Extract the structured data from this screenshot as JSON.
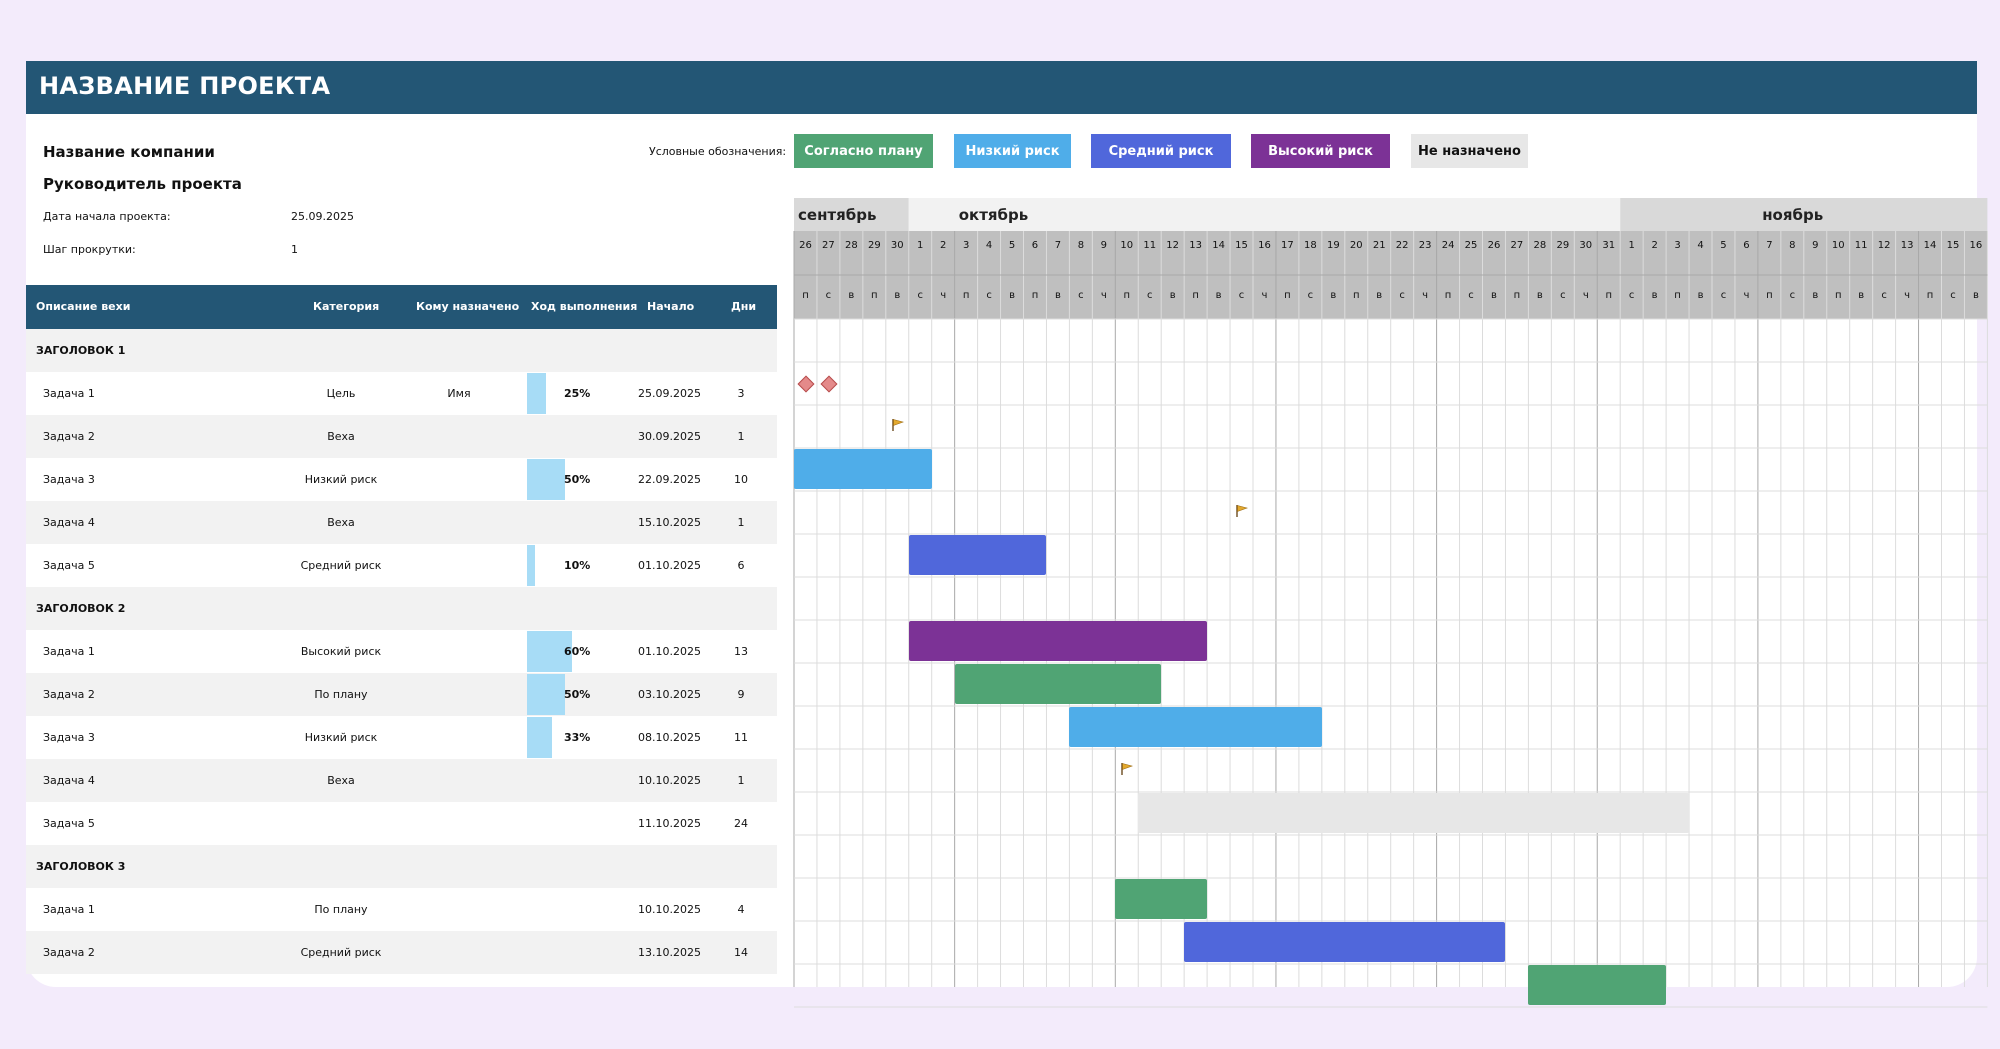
{
  "title": "НАЗВАНИЕ ПРОЕКТА",
  "company": "Название компании",
  "manager": "Руководитель проекта",
  "start_label": "Дата начала проекта:",
  "start_value": "25.09.2025",
  "step_label": "Шаг прокрутки:",
  "step_value": "1",
  "legend": {
    "label": "Условные обозначения:",
    "items": [
      {
        "label": "Согласно плану",
        "color": "#50a474",
        "text": "#ffffff"
      },
      {
        "label": "Низкий риск",
        "color": "#4fade9",
        "text": "#ffffff"
      },
      {
        "label": "Средний риск",
        "color": "#5067db",
        "text": "#ffffff"
      },
      {
        "label": "Высокий риск",
        "color": "#7c3296",
        "text": "#ffffff"
      },
      {
        "label": "Не назначено",
        "color": "#e7e7e7",
        "text": "#111111"
      }
    ]
  },
  "columns": [
    "Описание вехи",
    "Категория",
    "Кому назначено",
    "Ход выполнения",
    "Начало",
    "Дни"
  ],
  "rows": [
    {
      "type": "header",
      "label": "ЗАГОЛОВОК 1"
    },
    {
      "type": "task",
      "label": "Задача 1",
      "category": "Цель",
      "assignee": "Имя",
      "progress": 25,
      "progress_text": "25%",
      "start": "25.09.2025",
      "days": "3",
      "gantt": {
        "kind": "diamonds",
        "start": 0,
        "length": 2
      }
    },
    {
      "type": "task",
      "label": "Задача 2",
      "category": "Веха",
      "assignee": "",
      "progress": 0,
      "progress_text": "",
      "start": "30.09.2025",
      "days": "1",
      "gantt": {
        "kind": "flag",
        "start": 4,
        "length": 1
      }
    },
    {
      "type": "task",
      "label": "Задача 3",
      "category": "Низкий риск",
      "assignee": "",
      "progress": 50,
      "progress_text": "50%",
      "start": "22.09.2025",
      "days": "10",
      "gantt": {
        "kind": "bar",
        "start": 0,
        "length": 6,
        "color": "#4fade9"
      }
    },
    {
      "type": "task",
      "label": "Задача 4",
      "category": "Веха",
      "assignee": "",
      "progress": 0,
      "progress_text": "",
      "start": "15.10.2025",
      "days": "1",
      "gantt": {
        "kind": "flag",
        "start": 19,
        "length": 1
      }
    },
    {
      "type": "task",
      "label": "Задача 5",
      "category": "Средний риск",
      "assignee": "",
      "progress": 10,
      "progress_text": "10%",
      "start": "01.10.2025",
      "days": "6",
      "gantt": {
        "kind": "bar",
        "start": 5,
        "length": 6,
        "color": "#5067db"
      }
    },
    {
      "type": "header",
      "label": "ЗАГОЛОВОК 2"
    },
    {
      "type": "task",
      "label": "Задача 1",
      "category": "Высокий риск",
      "assignee": "",
      "progress": 60,
      "progress_text": "60%",
      "start": "01.10.2025",
      "days": "13",
      "gantt": {
        "kind": "bar",
        "start": 5,
        "length": 13,
        "color": "#7c3296"
      }
    },
    {
      "type": "task",
      "label": "Задача 2",
      "category": "По плану",
      "assignee": "",
      "progress": 50,
      "progress_text": "50%",
      "start": "03.10.2025",
      "days": "9",
      "gantt": {
        "kind": "bar",
        "start": 7,
        "length": 9,
        "color": "#50a474"
      }
    },
    {
      "type": "task",
      "label": "Задача 3",
      "category": "Низкий риск",
      "assignee": "",
      "progress": 33,
      "progress_text": "33%",
      "start": "08.10.2025",
      "days": "11",
      "gantt": {
        "kind": "bar",
        "start": 12,
        "length": 11,
        "color": "#4fade9"
      }
    },
    {
      "type": "task",
      "label": "Задача 4",
      "category": "Веха",
      "assignee": "",
      "progress": 0,
      "progress_text": "",
      "start": "10.10.2025",
      "days": "1",
      "gantt": {
        "kind": "flag",
        "start": 14,
        "length": 1
      }
    },
    {
      "type": "task",
      "label": "Задача 5",
      "category": "",
      "assignee": "",
      "progress": 0,
      "progress_text": "",
      "start": "11.10.2025",
      "days": "24",
      "gantt": {
        "kind": "bar",
        "start": 15,
        "length": 24,
        "color": "#e7e7e7"
      }
    },
    {
      "type": "header",
      "label": "ЗАГОЛОВОК 3"
    },
    {
      "type": "task",
      "label": "Задача 1",
      "category": "По плану",
      "assignee": "",
      "progress": 0,
      "progress_text": "",
      "start": "10.10.2025",
      "days": "4",
      "gantt": {
        "kind": "bar",
        "start": 14,
        "length": 4,
        "color": "#50a474"
      }
    },
    {
      "type": "task",
      "label": "Задача 2",
      "category": "Средний риск",
      "assignee": "",
      "progress": 0,
      "progress_text": "",
      "start": "13.10.2025",
      "days": "14",
      "gantt": {
        "kind": "bar",
        "start": 17,
        "length": 14,
        "color": "#5067db"
      }
    },
    {
      "type": "task",
      "label": "",
      "category": "",
      "assignee": "",
      "progress": 0,
      "progress_text": "",
      "start": "",
      "days": "",
      "gantt": {
        "kind": "bar",
        "start": 32,
        "length": 6,
        "color": "#50a474"
      }
    }
  ],
  "timeline": {
    "months": [
      {
        "label": "сентябрь",
        "start": 0,
        "length": 5,
        "fill": "#d9d9d9"
      },
      {
        "label": "октябрь",
        "start": 5,
        "length": 31,
        "fill": "#f2f2f2"
      },
      {
        "label": "ноябрь",
        "start": 36,
        "length": 16,
        "fill": "#d9d9d9"
      }
    ],
    "days": [
      "26",
      "27",
      "28",
      "29",
      "30",
      "1",
      "2",
      "3",
      "4",
      "5",
      "6",
      "7",
      "8",
      "9",
      "10",
      "11",
      "12",
      "13",
      "14",
      "15",
      "16",
      "17",
      "18",
      "19",
      "20",
      "21",
      "22",
      "23",
      "24",
      "25",
      "26",
      "27",
      "28",
      "29",
      "30",
      "31",
      "1",
      "2",
      "3",
      "4",
      "5",
      "6",
      "7",
      "8",
      "9",
      "10",
      "11",
      "12",
      "13",
      "14",
      "15",
      "16"
    ],
    "weekdays": [
      "п",
      "с",
      "в",
      "п",
      "в",
      "с",
      "ч",
      "п",
      "с",
      "в",
      "п",
      "в",
      "с",
      "ч",
      "п",
      "с",
      "в",
      "п",
      "в",
      "с",
      "ч",
      "п",
      "с",
      "в",
      "п",
      "в",
      "с",
      "ч",
      "п",
      "с",
      "в",
      "п",
      "в",
      "с",
      "ч",
      "п",
      "с",
      "в",
      "п",
      "в",
      "с",
      "ч",
      "п",
      "с",
      "в",
      "п",
      "в",
      "с",
      "ч",
      "п",
      "с",
      "в"
    ]
  }
}
